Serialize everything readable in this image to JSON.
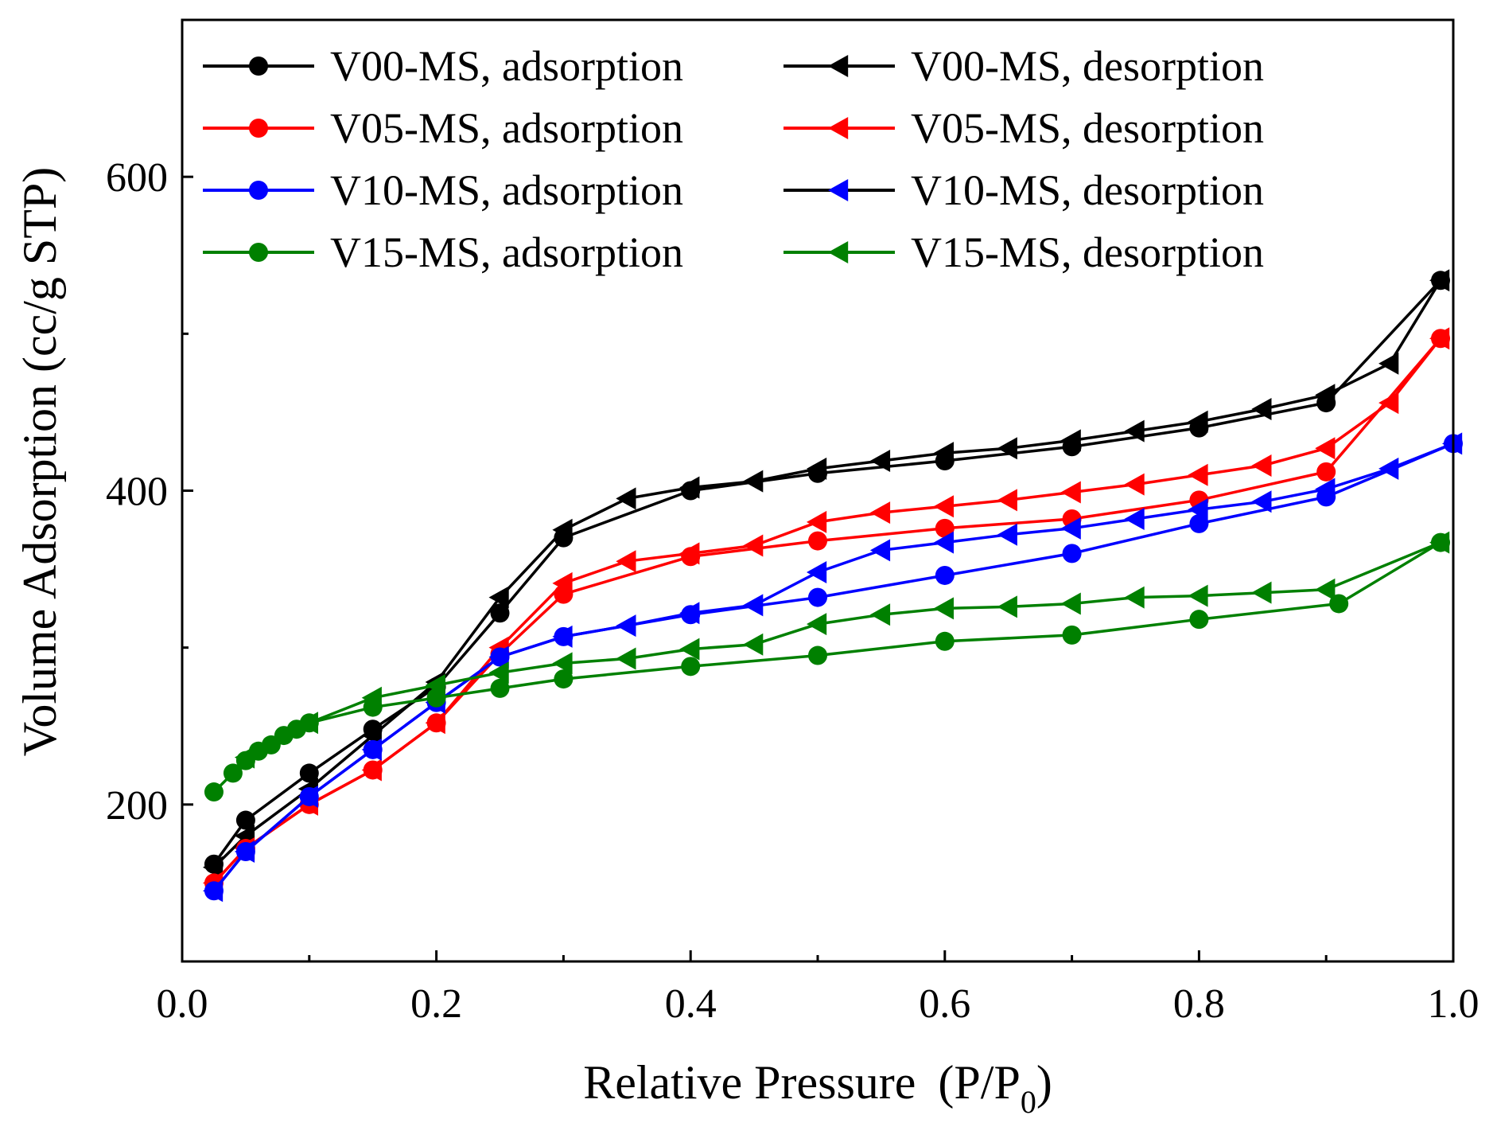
{
  "chart_data": {
    "type": "line",
    "title": "",
    "xlabel": "Relative Pressure",
    "xlabel_suffix": "(P/P",
    "xlabel_subscript": "0",
    "xlabel_close": ")",
    "ylabel": "Volume Adsorption (cc/g STP)",
    "xlim": [
      0.0,
      1.0
    ],
    "ylim": [
      100,
      700
    ],
    "xticks": [
      0.0,
      0.2,
      0.4,
      0.6,
      0.8,
      1.0
    ],
    "xtick_labels": [
      "0.0",
      "0.2",
      "0.4",
      "0.6",
      "0.8",
      "1.0"
    ],
    "yticks": [
      200,
      400,
      600
    ],
    "ytick_labels": [
      "200",
      "400",
      "600"
    ],
    "grid": false,
    "legend_position": "top-left",
    "series": [
      {
        "name": "V00-MS, adsorption",
        "marker": "circle",
        "color": "#000000",
        "x": [
          0.025,
          0.05,
          0.1,
          0.15,
          0.2,
          0.25,
          0.3,
          0.4,
          0.5,
          0.6,
          0.7,
          0.8,
          0.9,
          0.99
        ],
        "y": [
          162,
          190,
          220,
          248,
          275,
          322,
          370,
          400,
          411,
          419,
          428,
          440,
          456,
          534
        ]
      },
      {
        "name": "V00-MS, desorption",
        "marker": "triangle-left",
        "color": "#000000",
        "x": [
          0.99,
          0.95,
          0.9,
          0.85,
          0.8,
          0.75,
          0.7,
          0.65,
          0.6,
          0.55,
          0.5,
          0.45,
          0.4,
          0.35,
          0.3,
          0.25,
          0.2,
          0.15,
          0.1,
          0.05,
          0.025
        ],
        "y": [
          534,
          481,
          461,
          452,
          444,
          438,
          432,
          427,
          424,
          419,
          414,
          406,
          402,
          395,
          375,
          332,
          278,
          244,
          210,
          180,
          160
        ]
      },
      {
        "name": "V05-MS, adsorption",
        "marker": "circle",
        "color": "#ff0000",
        "x": [
          0.025,
          0.05,
          0.1,
          0.15,
          0.2,
          0.25,
          0.3,
          0.4,
          0.5,
          0.6,
          0.7,
          0.8,
          0.9,
          0.99
        ],
        "y": [
          150,
          172,
          200,
          222,
          252,
          296,
          334,
          358,
          368,
          376,
          382,
          394,
          412,
          497
        ]
      },
      {
        "name": "V05-MS, desorption",
        "marker": "triangle-left",
        "color": "#ff0000",
        "x": [
          0.99,
          0.95,
          0.9,
          0.85,
          0.8,
          0.75,
          0.7,
          0.65,
          0.6,
          0.55,
          0.5,
          0.45,
          0.4,
          0.35,
          0.3,
          0.25,
          0.2,
          0.15,
          0.1,
          0.05,
          0.025
        ],
        "y": [
          497,
          456,
          427,
          416,
          410,
          404,
          399,
          394,
          390,
          386,
          380,
          365,
          360,
          355,
          341,
          300,
          252,
          222,
          200,
          172,
          150
        ]
      },
      {
        "name": "V10-MS, adsorption",
        "marker": "circle",
        "color": "#0000ff",
        "x": [
          0.025,
          0.05,
          0.1,
          0.15,
          0.2,
          0.25,
          0.3,
          0.4,
          0.5,
          0.6,
          0.7,
          0.8,
          0.9,
          1.0
        ],
        "y": [
          145,
          170,
          205,
          235,
          265,
          294,
          307,
          321,
          332,
          346,
          360,
          379,
          396,
          430
        ]
      },
      {
        "name": "V10-MS, desorption",
        "marker": "triangle-left",
        "color": "#0000ff",
        "x": [
          1.0,
          0.95,
          0.9,
          0.85,
          0.8,
          0.75,
          0.7,
          0.65,
          0.6,
          0.55,
          0.5,
          0.45,
          0.4,
          0.35,
          0.3,
          0.25,
          0.2,
          0.15,
          0.1,
          0.05,
          0.025
        ],
        "y": [
          430,
          414,
          401,
          393,
          388,
          382,
          376,
          372,
          367,
          362,
          348,
          327,
          322,
          314,
          307,
          294,
          265,
          235,
          205,
          170,
          145
        ]
      },
      {
        "name": "V15-MS, adsorption",
        "marker": "circle",
        "color": "#008000",
        "x": [
          0.025,
          0.04,
          0.05,
          0.06,
          0.07,
          0.08,
          0.09,
          0.1,
          0.15,
          0.2,
          0.25,
          0.3,
          0.4,
          0.5,
          0.6,
          0.7,
          0.8,
          0.91,
          0.99
        ],
        "y": [
          208,
          220,
          228,
          234,
          238,
          244,
          248,
          252,
          262,
          268,
          274,
          280,
          288,
          295,
          304,
          308,
          318,
          328,
          367
        ]
      },
      {
        "name": "V15-MS, desorption",
        "marker": "triangle-left",
        "color": "#008000",
        "x": [
          0.99,
          0.9,
          0.85,
          0.8,
          0.75,
          0.7,
          0.65,
          0.6,
          0.55,
          0.5,
          0.45,
          0.4,
          0.35,
          0.3,
          0.25,
          0.2,
          0.15,
          0.1,
          0.05
        ],
        "y": [
          367,
          337,
          335,
          333,
          332,
          328,
          326,
          325,
          321,
          315,
          302,
          299,
          293,
          290,
          284,
          276,
          268,
          252,
          230
        ]
      }
    ]
  },
  "legend": {
    "entries": [
      {
        "label": "V00-MS, adsorption",
        "line_color": "#000000",
        "marker_color": "#000000",
        "marker": "circle"
      },
      {
        "label": "V00-MS, desorption",
        "line_color": "#000000",
        "marker_color": "#000000",
        "marker": "triangle-left"
      },
      {
        "label": "V05-MS, adsorption",
        "line_color": "#ff0000",
        "marker_color": "#ff0000",
        "marker": "circle"
      },
      {
        "label": "V05-MS, desorption",
        "line_color": "#ff0000",
        "marker_color": "#ff0000",
        "marker": "triangle-left"
      },
      {
        "label": "V10-MS, adsorption",
        "line_color": "#0000ff",
        "marker_color": "#0000ff",
        "marker": "circle"
      },
      {
        "label": "V10-MS, desorption",
        "line_color": "#000000",
        "marker_color": "#0000ff",
        "marker": "triangle-left"
      },
      {
        "label": "V15-MS, adsorption",
        "line_color": "#008000",
        "marker_color": "#008000",
        "marker": "circle"
      },
      {
        "label": "V15-MS, desorption",
        "line_color": "#008000",
        "marker_color": "#008000",
        "marker": "triangle-left"
      }
    ]
  }
}
